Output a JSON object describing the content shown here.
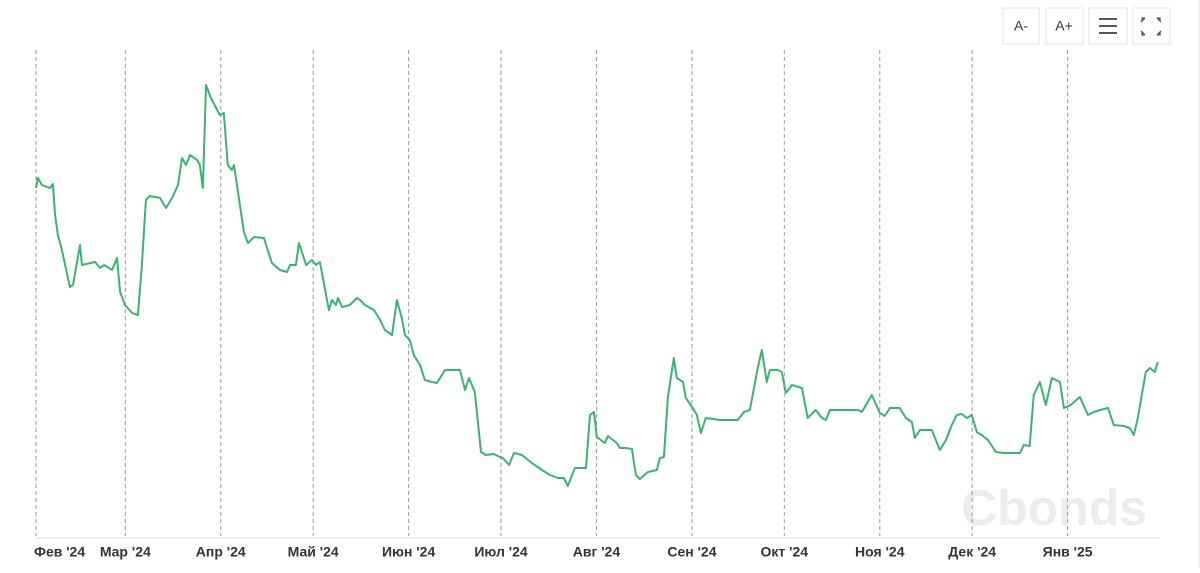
{
  "toolbar": {
    "buttons": [
      "A-",
      "A+"
    ]
  },
  "watermark": "Cbonds",
  "chart_data": {
    "type": "line",
    "color": "#3cb371",
    "grid": true,
    "xlim": [
      0,
      365
    ],
    "ylim": [
      0,
      500
    ],
    "xticks": [
      {
        "value": 0,
        "label": "Фев '24"
      },
      {
        "value": 29,
        "label": "Мар '24"
      },
      {
        "value": 60,
        "label": "Апр '24"
      },
      {
        "value": 90,
        "label": "Май '24"
      },
      {
        "value": 121,
        "label": "Июн '24"
      },
      {
        "value": 151,
        "label": "Июл '24"
      },
      {
        "value": 182,
        "label": "Авг '24"
      },
      {
        "value": 213,
        "label": "Сен '24"
      },
      {
        "value": 243,
        "label": "Окт '24"
      },
      {
        "value": 274,
        "label": "Ноя '24"
      },
      {
        "value": 304,
        "label": "Дек '24"
      },
      {
        "value": 335,
        "label": "Янв '25"
      }
    ],
    "x": [
      0.0,
      0.6,
      1.9,
      4.5,
      5.5,
      6.2,
      7.1,
      8.4,
      11.0,
      12.0,
      14.3,
      14.9,
      19.2,
      20.8,
      22.1,
      24.7,
      26.3,
      27.3,
      28.9,
      31.2,
      33.1,
      34.4,
      35.7,
      37.0,
      40.3,
      42.2,
      44.2,
      46.1,
      47.4,
      48.7,
      50.0,
      52.3,
      53.2,
      54.2,
      55.2,
      56.8,
      59.7,
      61.0,
      62.3,
      63.6,
      64.3,
      67.5,
      68.8,
      70.8,
      74.0,
      76.6,
      79.2,
      81.5,
      82.5,
      84.4,
      85.4,
      87.7,
      89.6,
      90.9,
      92.2,
      95.1,
      96.1,
      97.4,
      98.1,
      99.4,
      101.9,
      104.2,
      105.2,
      106.8,
      109.7,
      111.4,
      113.3,
      115.6,
      117.2,
      118.8,
      119.8,
      121.4,
      122.7,
      124.7,
      126.3,
      128.6,
      130.2,
      132.8,
      137.7,
      139.3,
      140.6,
      142.5,
      144.5,
      146.1,
      148.7,
      150.6,
      151.6,
      153.6,
      155.2,
      157.8,
      161.0,
      164.3,
      166.9,
      169.5,
      171.4,
      172.7,
      175.0,
      178.6,
      179.9,
      181.2,
      182.1,
      184.7,
      185.7,
      188.6,
      189.6,
      191.6,
      193.5,
      194.8,
      196.1,
      198.7,
      201.6,
      202.6,
      203.9,
      205.2,
      207.1,
      208.1,
      210.1,
      211.0,
      213.3,
      214.6,
      215.9,
      217.5,
      222.1,
      227.9,
      229.9,
      231.8,
      234.4,
      235.7,
      237.3,
      238.3,
      240.9,
      242.2,
      243.5,
      245.5,
      248.7,
      250.6,
      253.2,
      255.2,
      256.5,
      257.8,
      266.9,
      268.2,
      271.4,
      274.0,
      275.6,
      277.3,
      280.5,
      282.5,
      284.4,
      285.4,
      287.0,
      290.9,
      293.5,
      295.5,
      297.4,
      299.0,
      300.6,
      302.3,
      303.9,
      305.5,
      307.1,
      309.1,
      311.7,
      314.3,
      319.5,
      320.8,
      322.7,
      324.0,
      326.0,
      327.9,
      329.9,
      332.5,
      333.8,
      336.0,
      339.0,
      341.6,
      343.5,
      345.5,
      348.1,
      350.0,
      353.2,
      355.2,
      356.5,
      357.8,
      360.4,
      361.7,
      363.3,
      364.3
    ],
    "values": [
      352,
      362,
      355,
      352,
      356,
      325,
      305,
      290,
      253,
      255,
      295,
      275,
      278,
      272,
      275,
      270,
      282,
      248,
      235,
      227,
      225,
      275,
      340,
      344,
      342,
      332,
      342,
      355,
      382,
      375,
      385,
      380,
      375,
      352,
      455,
      442,
      425,
      427,
      375,
      370,
      375,
      308,
      297,
      303,
      302,
      277,
      270,
      268,
      275,
      275,
      297,
      275,
      280,
      275,
      278,
      230,
      240,
      235,
      242,
      233,
      235,
      242,
      240,
      235,
      230,
      222,
      210,
      205,
      240,
      222,
      205,
      200,
      185,
      175,
      160,
      158,
      157,
      170,
      170,
      150,
      162,
      148,
      88,
      85,
      86,
      83,
      82,
      75,
      87,
      85,
      77,
      70,
      65,
      62,
      62,
      54,
      72,
      72,
      125,
      128,
      103,
      97,
      104,
      97,
      92,
      92,
      91,
      65,
      61,
      68,
      70,
      82,
      83,
      143,
      182,
      162,
      158,
      142,
      132,
      125,
      107,
      122,
      120,
      120,
      128,
      130,
      172,
      190,
      158,
      170,
      170,
      168,
      147,
      155,
      152,
      122,
      130,
      122,
      120,
      130,
      130,
      128,
      145,
      127,
      124,
      132,
      132,
      122,
      118,
      102,
      110,
      110,
      90,
      100,
      115,
      125,
      126,
      122,
      125,
      108,
      105,
      100,
      88,
      87,
      87,
      95,
      94,
      145,
      158,
      135,
      162,
      158,
      132,
      135,
      143,
      125,
      128,
      130,
      132,
      115,
      114,
      112,
      105,
      122,
      168,
      172,
      168,
      178
    ]
  }
}
